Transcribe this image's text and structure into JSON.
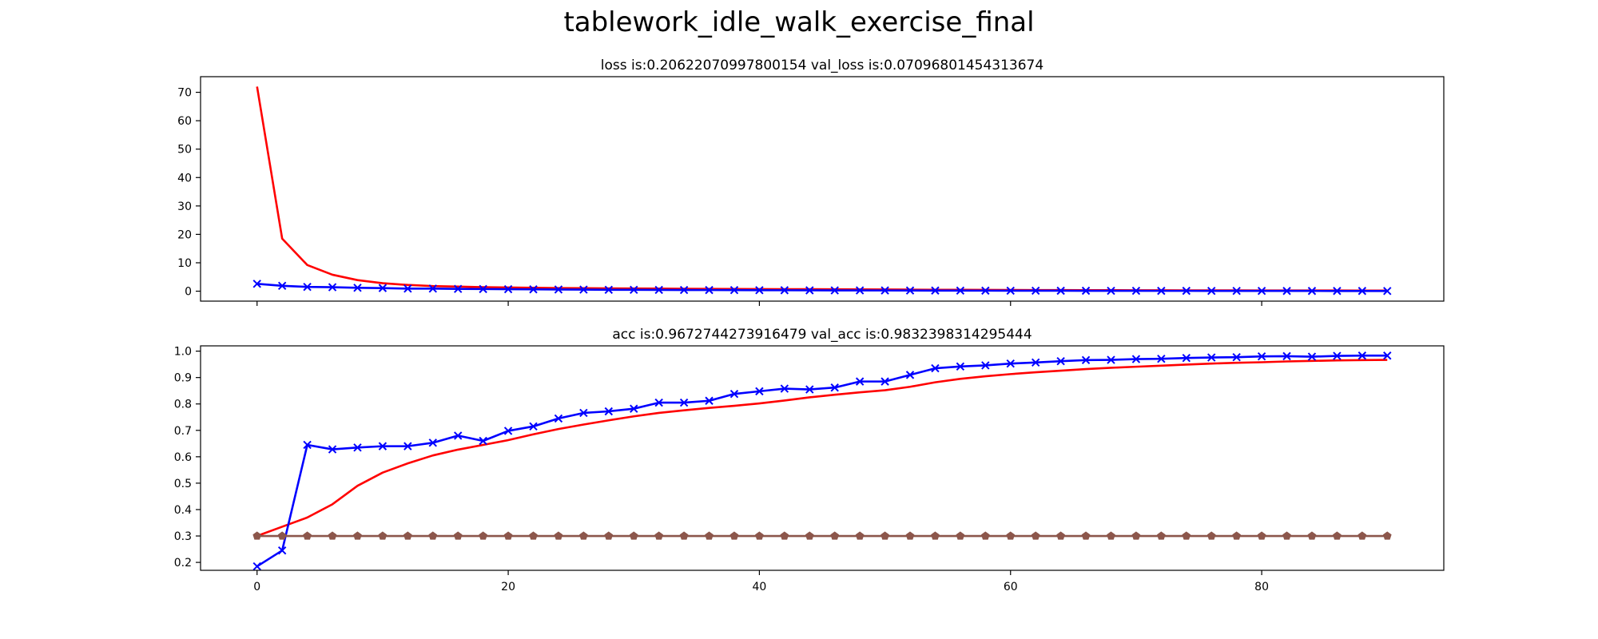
{
  "figure": {
    "suptitle": "tablework_idle_walk_exercise_final"
  },
  "chart_data": [
    {
      "type": "line",
      "title": "loss is:0.20622070997800154 val_loss is:0.07096801454313674",
      "xlabel": "",
      "ylabel": "",
      "xlim": [
        -4.5,
        94.5
      ],
      "ylim": [
        -3.5,
        75.5
      ],
      "xticks": [
        0,
        20,
        40,
        60,
        80
      ],
      "show_xtick_labels": false,
      "yticks": [
        0,
        10,
        20,
        30,
        40,
        50,
        60,
        70
      ],
      "grid": false,
      "legend": "none",
      "series": [
        {
          "color": "#ff0000",
          "marker": "none",
          "x": [
            0,
            2,
            4,
            6,
            8,
            10,
            12,
            14,
            16,
            18,
            20,
            22,
            24,
            26,
            28,
            30,
            32,
            34,
            36,
            38,
            40,
            42,
            44,
            46,
            48,
            50,
            52,
            54,
            56,
            58,
            60,
            62,
            64,
            66,
            68,
            70,
            72,
            74,
            76,
            78,
            80,
            82,
            84,
            86,
            88,
            90
          ],
          "values": [
            72.0,
            18.5,
            9.2,
            5.8,
            3.9,
            2.8,
            2.2,
            1.8,
            1.6,
            1.4,
            1.3,
            1.2,
            1.1,
            1.05,
            1.0,
            0.95,
            0.9,
            0.85,
            0.8,
            0.78,
            0.75,
            0.72,
            0.7,
            0.68,
            0.65,
            0.6,
            0.55,
            0.5,
            0.48,
            0.45,
            0.42,
            0.4,
            0.38,
            0.36,
            0.34,
            0.32,
            0.3,
            0.29,
            0.28,
            0.27,
            0.26,
            0.25,
            0.24,
            0.23,
            0.22,
            0.21
          ]
        },
        {
          "color": "#0000ff",
          "marker": "x",
          "x": [
            0,
            2,
            4,
            6,
            8,
            10,
            12,
            14,
            16,
            18,
            20,
            22,
            24,
            26,
            28,
            30,
            32,
            34,
            36,
            38,
            40,
            42,
            44,
            46,
            48,
            50,
            52,
            54,
            56,
            58,
            60,
            62,
            64,
            66,
            68,
            70,
            72,
            74,
            76,
            78,
            80,
            82,
            84,
            86,
            88,
            90
          ],
          "values": [
            2.6,
            1.9,
            1.5,
            1.4,
            1.2,
            1.1,
            0.9,
            0.9,
            0.8,
            0.75,
            0.7,
            0.65,
            0.6,
            0.55,
            0.5,
            0.48,
            0.45,
            0.42,
            0.4,
            0.38,
            0.35,
            0.33,
            0.3,
            0.28,
            0.27,
            0.26,
            0.24,
            0.22,
            0.2,
            0.19,
            0.18,
            0.17,
            0.16,
            0.15,
            0.14,
            0.13,
            0.12,
            0.12,
            0.11,
            0.1,
            0.1,
            0.09,
            0.09,
            0.08,
            0.08,
            0.07
          ]
        }
      ]
    },
    {
      "type": "line",
      "title": "acc is:0.9672744273916479 val_acc is:0.9832398314295444",
      "xlabel": "",
      "ylabel": "",
      "xlim": [
        -4.5,
        94.5
      ],
      "ylim": [
        0.17,
        1.02
      ],
      "xticks": [
        0,
        20,
        40,
        60,
        80
      ],
      "show_xtick_labels": true,
      "yticks": [
        0.2,
        0.3,
        0.4,
        0.5,
        0.6,
        0.7,
        0.8,
        0.9,
        1.0
      ],
      "ytick_labels": [
        "0.2",
        "0.3",
        "0.4",
        "0.5",
        "0.6",
        "0.7",
        "0.8",
        "0.9",
        "1.0"
      ],
      "grid": false,
      "legend": "none",
      "series": [
        {
          "color": "#ff0000",
          "marker": "none",
          "x": [
            0,
            2,
            4,
            6,
            8,
            10,
            12,
            14,
            16,
            18,
            20,
            22,
            24,
            26,
            28,
            30,
            32,
            34,
            36,
            38,
            40,
            42,
            44,
            46,
            48,
            50,
            52,
            54,
            56,
            58,
            60,
            62,
            64,
            66,
            68,
            70,
            72,
            74,
            76,
            78,
            80,
            82,
            84,
            86,
            88,
            90
          ],
          "values": [
            0.3,
            0.335,
            0.37,
            0.42,
            0.49,
            0.54,
            0.575,
            0.605,
            0.627,
            0.645,
            0.663,
            0.685,
            0.705,
            0.722,
            0.738,
            0.753,
            0.766,
            0.776,
            0.785,
            0.793,
            0.802,
            0.813,
            0.825,
            0.835,
            0.844,
            0.852,
            0.865,
            0.882,
            0.895,
            0.905,
            0.913,
            0.92,
            0.926,
            0.932,
            0.937,
            0.941,
            0.945,
            0.949,
            0.953,
            0.956,
            0.958,
            0.961,
            0.963,
            0.965,
            0.966,
            0.967
          ]
        },
        {
          "color": "#0000ff",
          "marker": "x",
          "x": [
            0,
            2,
            4,
            6,
            8,
            10,
            12,
            14,
            16,
            18,
            20,
            22,
            24,
            26,
            28,
            30,
            32,
            34,
            36,
            38,
            40,
            42,
            44,
            46,
            48,
            50,
            52,
            54,
            56,
            58,
            60,
            62,
            64,
            66,
            68,
            70,
            72,
            74,
            76,
            78,
            80,
            82,
            84,
            86,
            88,
            90
          ],
          "values": [
            0.185,
            0.245,
            0.645,
            0.628,
            0.635,
            0.64,
            0.64,
            0.653,
            0.68,
            0.66,
            0.698,
            0.715,
            0.745,
            0.766,
            0.772,
            0.782,
            0.805,
            0.805,
            0.812,
            0.838,
            0.848,
            0.858,
            0.855,
            0.862,
            0.885,
            0.885,
            0.91,
            0.935,
            0.942,
            0.946,
            0.953,
            0.957,
            0.962,
            0.966,
            0.967,
            0.97,
            0.971,
            0.974,
            0.976,
            0.977,
            0.98,
            0.981,
            0.979,
            0.982,
            0.983,
            0.983
          ]
        },
        {
          "color": "#8c564b",
          "marker": "pentagon",
          "x": [
            0,
            2,
            4,
            6,
            8,
            10,
            12,
            14,
            16,
            18,
            20,
            22,
            24,
            26,
            28,
            30,
            32,
            34,
            36,
            38,
            40,
            42,
            44,
            46,
            48,
            50,
            52,
            54,
            56,
            58,
            60,
            62,
            64,
            66,
            68,
            70,
            72,
            74,
            76,
            78,
            80,
            82,
            84,
            86,
            88,
            90
          ],
          "values": [
            0.3,
            0.3,
            0.3,
            0.3,
            0.3,
            0.3,
            0.3,
            0.3,
            0.3,
            0.3,
            0.3,
            0.3,
            0.3,
            0.3,
            0.3,
            0.3,
            0.3,
            0.3,
            0.3,
            0.3,
            0.3,
            0.3,
            0.3,
            0.3,
            0.3,
            0.3,
            0.3,
            0.3,
            0.3,
            0.3,
            0.3,
            0.3,
            0.3,
            0.3,
            0.3,
            0.3,
            0.3,
            0.3,
            0.3,
            0.3,
            0.3,
            0.3,
            0.3,
            0.3,
            0.3,
            0.3
          ]
        }
      ]
    }
  ]
}
